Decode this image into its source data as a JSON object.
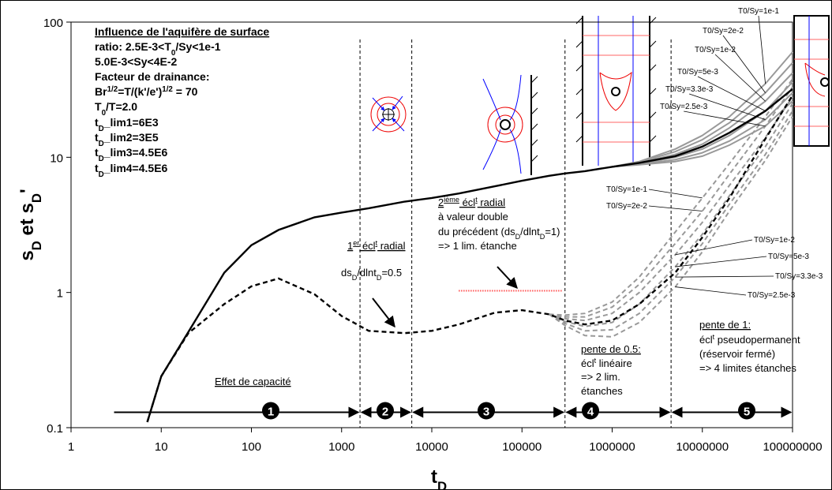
{
  "chart_data": {
    "type": "line",
    "x": [
      7,
      10,
      20,
      50,
      100,
      200,
      500,
      1000,
      2000,
      5000,
      10000,
      20000,
      50000,
      100000,
      200000,
      300000,
      500000,
      1000000,
      2000000,
      5000000,
      10000000,
      20000000,
      50000000,
      100000000
    ],
    "log_x": true,
    "log_y": true,
    "xlim": [
      1,
      100000000
    ],
    "ylim": [
      0.1,
      100
    ],
    "xticks": [
      1,
      10,
      100,
      1000,
      10000,
      100000,
      1000000,
      10000000,
      100000000
    ],
    "yticks": [
      0.1,
      1,
      10,
      100
    ],
    "x_label": [
      "t",
      "D"
    ],
    "y_label": [
      "s",
      "D",
      " et  s",
      "D",
      "'"
    ],
    "series": [
      {
        "color": "#000000",
        "dashed": false,
        "values": [
          0.11,
          0.24,
          0.51,
          1.4,
          2.24,
          2.9,
          3.6,
          3.9,
          4.2,
          4.7,
          5.0,
          5.4,
          6.1,
          6.7,
          7.3,
          7.6,
          7.9,
          8.5,
          9.1,
          10.2,
          12.0,
          15.2,
          22,
          32
        ]
      },
      {
        "color": "#000000",
        "dashed": true,
        "values": [
          0.11,
          0.24,
          0.5,
          0.82,
          1.11,
          1.27,
          0.97,
          0.67,
          0.52,
          0.5,
          0.52,
          0.58,
          0.71,
          0.74,
          0.69,
          0.62,
          0.58,
          0.62,
          0.82,
          1.4,
          2.56,
          5.0,
          13.7,
          28.7
        ]
      },
      {
        "name": "T0/Sy=1e-1",
        "color": "#999999",
        "dashed": false,
        "values": [
          null,
          null,
          null,
          null,
          null,
          null,
          null,
          null,
          null,
          null,
          null,
          null,
          null,
          null,
          null,
          null,
          null,
          8.5,
          9.3,
          11.5,
          14.5,
          20,
          35,
          60
        ]
      },
      {
        "name": "T0/Sy=2e-2",
        "color": "#999999",
        "dashed": false,
        "values": [
          null,
          null,
          null,
          null,
          null,
          null,
          null,
          null,
          null,
          null,
          null,
          null,
          null,
          null,
          null,
          null,
          null,
          8.5,
          9.2,
          11,
          13.5,
          18,
          30,
          50
        ]
      },
      {
        "name": "T0/Sy=1e-2",
        "color": "#999999",
        "dashed": false,
        "values": [
          null,
          null,
          null,
          null,
          null,
          null,
          null,
          null,
          null,
          null,
          null,
          null,
          null,
          null,
          null,
          null,
          null,
          8.5,
          9.1,
          10.5,
          12.5,
          16.5,
          26,
          42
        ]
      },
      {
        "name": "T0/Sy=5e-3",
        "color": "#999999",
        "dashed": false,
        "values": [
          null,
          null,
          null,
          null,
          null,
          null,
          null,
          null,
          null,
          null,
          null,
          null,
          null,
          null,
          null,
          null,
          null,
          8.5,
          9.0,
          10.0,
          11.5,
          14.5,
          22,
          36
        ]
      },
      {
        "name": "T0/Sy=3.3e-3",
        "color": "#999999",
        "dashed": false,
        "values": [
          null,
          null,
          null,
          null,
          null,
          null,
          null,
          null,
          null,
          null,
          null,
          null,
          null,
          null,
          null,
          null,
          null,
          8.5,
          8.9,
          9.6,
          10.8,
          13.2,
          19,
          30
        ]
      },
      {
        "name": "T0/Sy=2.5e-3",
        "color": "#999999",
        "dashed": false,
        "values": [
          null,
          null,
          null,
          null,
          null,
          null,
          null,
          null,
          null,
          null,
          null,
          null,
          null,
          null,
          null,
          null,
          null,
          8.5,
          8.8,
          9.3,
          10.2,
          12.3,
          17,
          26
        ]
      },
      {
        "name": "T0/Sy=1e-1",
        "color": "#999999",
        "dashed": true,
        "values": [
          null,
          null,
          null,
          null,
          null,
          null,
          null,
          null,
          null,
          null,
          null,
          null,
          null,
          null,
          0.69,
          0.68,
          0.7,
          0.85,
          1.3,
          2.8,
          5.0,
          9,
          20,
          38
        ]
      },
      {
        "name": "T0/Sy=2e-2",
        "color": "#999999",
        "dashed": true,
        "values": [
          null,
          null,
          null,
          null,
          null,
          null,
          null,
          null,
          null,
          null,
          null,
          null,
          null,
          null,
          0.69,
          0.66,
          0.66,
          0.78,
          1.15,
          2.3,
          4.0,
          7.5,
          17,
          33
        ]
      },
      {
        "name": "T0/Sy=1e-2",
        "color": "#999999",
        "dashed": true,
        "values": [
          null,
          null,
          null,
          null,
          null,
          null,
          null,
          null,
          null,
          null,
          null,
          null,
          null,
          null,
          0.69,
          0.64,
          0.62,
          0.7,
          1.0,
          1.9,
          3.3,
          6.2,
          14,
          28
        ]
      },
      {
        "name": "T0/Sy=5e-3",
        "color": "#999999",
        "dashed": true,
        "values": [
          null,
          null,
          null,
          null,
          null,
          null,
          null,
          null,
          null,
          null,
          null,
          null,
          null,
          null,
          0.69,
          0.61,
          0.56,
          0.6,
          0.82,
          1.55,
          2.7,
          5.2,
          12,
          25
        ]
      },
      {
        "name": "T0/Sy=3.3e-3",
        "color": "#999999",
        "dashed": true,
        "values": [
          null,
          null,
          null,
          null,
          null,
          null,
          null,
          null,
          null,
          null,
          null,
          null,
          null,
          null,
          0.69,
          0.59,
          0.52,
          0.53,
          0.7,
          1.3,
          2.3,
          4.5,
          10.5,
          22
        ]
      },
      {
        "name": "T0/Sy=2.5e-3",
        "color": "#999999",
        "dashed": true,
        "values": [
          null,
          null,
          null,
          null,
          null,
          null,
          null,
          null,
          null,
          null,
          null,
          null,
          null,
          null,
          0.69,
          0.57,
          0.48,
          0.47,
          0.6,
          1.1,
          2.0,
          4.0,
          9.5,
          20
        ]
      }
    ],
    "vlines": [
      1600,
      6000,
      300000,
      4500000
    ],
    "zone_x": [
      3,
      1600,
      6000,
      300000,
      4500000,
      100000000
    ],
    "zone_y": 0.13,
    "zones": [
      "1",
      "2",
      "3",
      "4",
      "5"
    ],
    "red_line": {
      "x": [
        20000,
        280000
      ],
      "y": 1.03,
      "color": "#ff0000"
    },
    "text_box": [
      [
        "Influence de l'aquifère de surface"
      ],
      [
        "ratio: 2.5E-3<T",
        "0",
        "/Sy<1e-1"
      ],
      [
        "5.0E-3<Sy<4E-2"
      ],
      [
        "Facteur de drainance:"
      ],
      [
        "Br",
        "1/2",
        "=T/(k'/e')",
        "1/2",
        " = 70"
      ],
      [
        "T",
        "0",
        "/T=2.0"
      ],
      [
        "t",
        "D",
        "_lim1=6E3"
      ],
      [
        "t",
        "D",
        "_lim2=3E5"
      ],
      [
        "t",
        "D",
        "_lim3=4.5E6"
      ],
      [
        "t",
        "D",
        "_lim4=4.5E6"
      ]
    ],
    "annotations": [
      [
        "1",
        "er",
        " écl",
        "t",
        " radial"
      ],
      [
        "ds",
        "D",
        "/dlnt",
        "D",
        "=0.5"
      ],
      [
        "2",
        "ième",
        " écl",
        "t",
        " radial"
      ],
      [
        "à valeur double"
      ],
      [
        "du précédent (ds",
        "D",
        "/dlnt",
        "D",
        "=1)"
      ],
      [
        "=> 1 lim. étanche"
      ],
      [
        "Effet de capacité"
      ],
      [
        "pente de 0.5:"
      ],
      [
        "écl",
        "t",
        " linéaire"
      ],
      [
        "=> 2 lim."
      ],
      [
        "étanches"
      ],
      [
        "pente de 1:"
      ],
      [
        "écl",
        "t",
        " pseudopermanent"
      ],
      [
        "(réservoir fermé)"
      ],
      [
        "=> 4 limites étanches"
      ]
    ]
  }
}
